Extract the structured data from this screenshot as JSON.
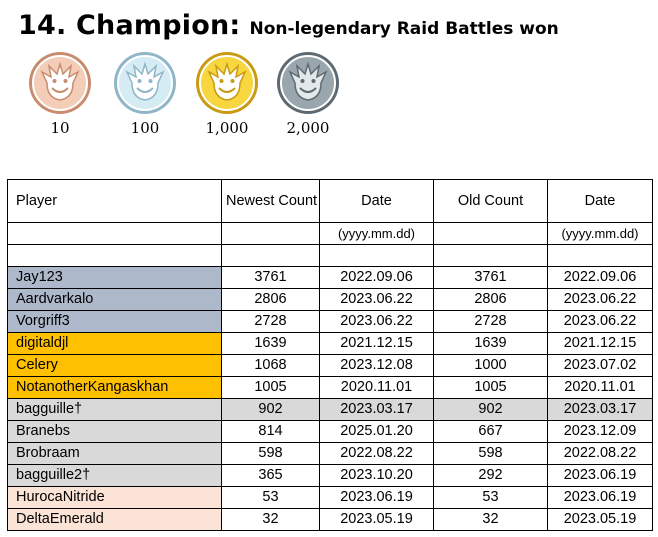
{
  "header": {
    "title": "14. Champion:",
    "subtitle": "Non-legendary Raid Battles won"
  },
  "medals": [
    {
      "tier": "bronze",
      "label": "10",
      "fill": "#f4cdb8",
      "ring": "#c98c6f",
      "face": "#ffffff"
    },
    {
      "tier": "silver",
      "label": "100",
      "fill": "#d6ecf5",
      "ring": "#8fb6c8",
      "face": "#ffffff"
    },
    {
      "tier": "gold",
      "label": "1,000",
      "fill": "#f8d640",
      "ring": "#c99a12",
      "face": "#ffffff"
    },
    {
      "tier": "platinum",
      "label": "2,000",
      "fill": "#9aa6ad",
      "ring": "#5e6a72",
      "face": "#e3e8eb"
    }
  ],
  "table": {
    "headers": {
      "player": "Player",
      "newest_count": "Newest Count",
      "date1": "Date",
      "old_count": "Old Count",
      "date2": "Date"
    },
    "format_row": [
      "",
      "",
      "(yyyy.mm.dd)",
      "",
      "(yyyy.mm.dd)"
    ],
    "colors": {
      "blue": "#adb9ca",
      "orange": "#ffc000",
      "grey": "#d9d9d9",
      "peach": "#fbe3d6"
    },
    "rows": [
      {
        "player": "Jay123",
        "newest": "3761",
        "date1": "2022.09.06",
        "old": "3761",
        "date2": "2022.09.06",
        "player_color": "blue",
        "row_color": ""
      },
      {
        "player": "Aardvarkalo",
        "newest": "2806",
        "date1": "2023.06.22",
        "old": "2806",
        "date2": "2023.06.22",
        "player_color": "blue",
        "row_color": ""
      },
      {
        "player": "Vorgriff3",
        "newest": "2728",
        "date1": "2023.06.22",
        "old": "2728",
        "date2": "2023.06.22",
        "player_color": "blue",
        "row_color": ""
      },
      {
        "player": "digitaldjl",
        "newest": "1639",
        "date1": "2021.12.15",
        "old": "1639",
        "date2": "2021.12.15",
        "player_color": "orange",
        "row_color": ""
      },
      {
        "player": "Celery",
        "newest": "1068",
        "date1": "2023.12.08",
        "old": "1000",
        "date2": "2023.07.02",
        "player_color": "orange",
        "row_color": ""
      },
      {
        "player": "NotanotherKangaskhan",
        "newest": "1005",
        "date1": "2020.11.01",
        "old": "1005",
        "date2": "2020.11.01",
        "player_color": "orange",
        "row_color": ""
      },
      {
        "player": "bagguille†",
        "newest": "902",
        "date1": "2023.03.17",
        "old": "902",
        "date2": "2023.03.17",
        "player_color": "grey",
        "row_color": "grey"
      },
      {
        "player": "Branebs",
        "newest": "814",
        "date1": "2025.01.20",
        "old": "667",
        "date2": "2023.12.09",
        "player_color": "grey",
        "row_color": ""
      },
      {
        "player": "Brobraam",
        "newest": "598",
        "date1": "2022.08.22",
        "old": "598",
        "date2": "2022.08.22",
        "player_color": "grey",
        "row_color": ""
      },
      {
        "player": "bagguille2†",
        "newest": "365",
        "date1": "2023.10.20",
        "old": "292",
        "date2": "2023.06.19",
        "player_color": "grey",
        "row_color": ""
      },
      {
        "player": "HurocaNitride",
        "newest": "53",
        "date1": "2023.06.19",
        "old": "53",
        "date2": "2023.06.19",
        "player_color": "peach",
        "row_color": ""
      },
      {
        "player": "DeltaEmerald",
        "newest": "32",
        "date1": "2023.05.19",
        "old": "32",
        "date2": "2023.05.19",
        "player_color": "peach",
        "row_color": ""
      }
    ]
  }
}
